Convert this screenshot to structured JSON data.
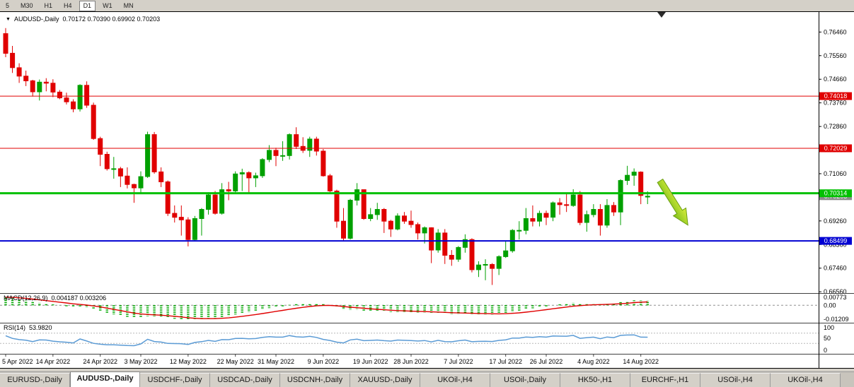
{
  "toolbar": {
    "timeframes": [
      "5",
      "M30",
      "H1",
      "H4",
      "D1",
      "W1",
      "MN"
    ],
    "active_timeframe": "D1"
  },
  "chart_data": {
    "type": "candlestick",
    "title_symbol": "AUDUSD-,Daily",
    "title_ohlc": "0.70172 0.70390 0.69902 0.70203",
    "y_range": [
      0.6651,
      0.7725
    ],
    "y_ticks": [
      "0.76460",
      "0.75560",
      "0.74660",
      "0.73760",
      "0.72860",
      "0.71960",
      "0.71060",
      "0.70160",
      "0.69260",
      "0.68360",
      "0.67460",
      "0.66560"
    ],
    "x_labels": [
      [
        "5 Apr 2022",
        0
      ],
      [
        "14 Apr 2022",
        7
      ],
      [
        "24 Apr 2022",
        14
      ],
      [
        "3 May 2022",
        20
      ],
      [
        "12 May 2022",
        27
      ],
      [
        "22 May 2022",
        34
      ],
      [
        "31 May 2022",
        40
      ],
      [
        "9 Jun 2022",
        47
      ],
      [
        "19 Jun 2022",
        54
      ],
      [
        "28 Jun 2022",
        60
      ],
      [
        "7 Jul 2022",
        67
      ],
      [
        "17 Jul 2022",
        74
      ],
      [
        "26 Jul 2022",
        80
      ],
      [
        "4 Aug 2022",
        87
      ],
      [
        "14 Aug 2022",
        94
      ]
    ],
    "up_color": "#00A000",
    "down_color": "#E00000",
    "hlines": [
      {
        "value": 0.74018,
        "label": "0.74018",
        "color": "#E00000",
        "width": 1
      },
      {
        "value": 0.72029,
        "label": "0.72029",
        "color": "#E00000",
        "width": 1
      },
      {
        "value": 0.70314,
        "label": "0.70314",
        "color": "#00C000",
        "width": 3
      },
      {
        "value": 0.68499,
        "label": "0.68499",
        "color": "#0000D2",
        "width": 2
      }
    ],
    "bid": {
      "value": 0.70203,
      "label": "0.70203",
      "color": "#8c8c8c"
    },
    "candles": [
      [
        0.764,
        0.7661,
        0.755,
        0.7565
      ],
      [
        0.7565,
        0.7593,
        0.749,
        0.751
      ],
      [
        0.751,
        0.7527,
        0.7452,
        0.7478
      ],
      [
        0.7478,
        0.7499,
        0.744,
        0.746
      ],
      [
        0.746,
        0.7464,
        0.74,
        0.7418
      ],
      [
        0.7418,
        0.7465,
        0.7385,
        0.7455
      ],
      [
        0.7455,
        0.747,
        0.742,
        0.7451
      ],
      [
        0.7451,
        0.7466,
        0.7398,
        0.7417
      ],
      [
        0.7417,
        0.7425,
        0.739,
        0.7395
      ],
      [
        0.7395,
        0.7415,
        0.737,
        0.738
      ],
      [
        0.738,
        0.739,
        0.734,
        0.7353
      ],
      [
        0.7353,
        0.7447,
        0.7343,
        0.7443
      ],
      [
        0.7443,
        0.7458,
        0.7357,
        0.7367
      ],
      [
        0.7367,
        0.7377,
        0.7235,
        0.724
      ],
      [
        0.724,
        0.7247,
        0.7135,
        0.718
      ],
      [
        0.718,
        0.719,
        0.7118,
        0.7125
      ],
      [
        0.7125,
        0.717,
        0.7087,
        0.7125
      ],
      [
        0.7125,
        0.7132,
        0.7055,
        0.7097
      ],
      [
        0.7097,
        0.713,
        0.705,
        0.7065
      ],
      [
        0.7065,
        0.7068,
        0.6995,
        0.7052
      ],
      [
        0.7052,
        0.7115,
        0.7029,
        0.7095
      ],
      [
        0.7095,
        0.7266,
        0.709,
        0.7255
      ],
      [
        0.7255,
        0.7265,
        0.7106,
        0.7113
      ],
      [
        0.7113,
        0.713,
        0.7055,
        0.7075
      ],
      [
        0.7075,
        0.708,
        0.6945,
        0.6955
      ],
      [
        0.6955,
        0.6985,
        0.692,
        0.694
      ],
      [
        0.694,
        0.6985,
        0.687,
        0.693
      ],
      [
        0.693,
        0.694,
        0.6829,
        0.6855
      ],
      [
        0.6855,
        0.6945,
        0.685,
        0.6935
      ],
      [
        0.6935,
        0.6975,
        0.687,
        0.697
      ],
      [
        0.697,
        0.7035,
        0.695,
        0.7025
      ],
      [
        0.7025,
        0.704,
        0.695,
        0.6955
      ],
      [
        0.6955,
        0.707,
        0.695,
        0.7045
      ],
      [
        0.7045,
        0.7075,
        0.7005,
        0.704
      ],
      [
        0.704,
        0.7115,
        0.7035,
        0.7105
      ],
      [
        0.7105,
        0.7125,
        0.704,
        0.711
      ],
      [
        0.711,
        0.7115,
        0.7035,
        0.709
      ],
      [
        0.709,
        0.711,
        0.7055,
        0.7098
      ],
      [
        0.7098,
        0.7165,
        0.709,
        0.716
      ],
      [
        0.716,
        0.7215,
        0.715,
        0.7195
      ],
      [
        0.7195,
        0.7205,
        0.7135,
        0.7175
      ],
      [
        0.7175,
        0.723,
        0.7155,
        0.7175
      ],
      [
        0.7175,
        0.726,
        0.716,
        0.7255
      ],
      [
        0.7255,
        0.7283,
        0.72,
        0.721
      ],
      [
        0.721,
        0.7245,
        0.7185,
        0.7195
      ],
      [
        0.7195,
        0.7247,
        0.717,
        0.7238
      ],
      [
        0.7238,
        0.7247,
        0.7175,
        0.7192
      ],
      [
        0.7192,
        0.72,
        0.7095,
        0.7098
      ],
      [
        0.7098,
        0.7105,
        0.7035,
        0.704
      ],
      [
        0.704,
        0.7045,
        0.69,
        0.6925
      ],
      [
        0.6925,
        0.6975,
        0.685,
        0.686
      ],
      [
        0.686,
        0.701,
        0.6855,
        0.7005
      ],
      [
        0.7005,
        0.707,
        0.6985,
        0.7045
      ],
      [
        0.7045,
        0.7045,
        0.693,
        0.6935
      ],
      [
        0.6935,
        0.6975,
        0.6925,
        0.695
      ],
      [
        0.695,
        0.6995,
        0.693,
        0.697
      ],
      [
        0.697,
        0.6975,
        0.688,
        0.6925
      ],
      [
        0.6925,
        0.693,
        0.6865,
        0.6895
      ],
      [
        0.6895,
        0.6955,
        0.689,
        0.6945
      ],
      [
        0.6945,
        0.696,
        0.6915,
        0.6925
      ],
      [
        0.6925,
        0.6965,
        0.69,
        0.6912
      ],
      [
        0.6912,
        0.692,
        0.6855,
        0.688
      ],
      [
        0.688,
        0.6905,
        0.684,
        0.69
      ],
      [
        0.69,
        0.6902,
        0.6765,
        0.6815
      ],
      [
        0.6815,
        0.6895,
        0.6805,
        0.688
      ],
      [
        0.688,
        0.6895,
        0.6762,
        0.6795
      ],
      [
        0.6795,
        0.6815,
        0.6755,
        0.678
      ],
      [
        0.678,
        0.683,
        0.677,
        0.6825
      ],
      [
        0.6825,
        0.6875,
        0.6805,
        0.6855
      ],
      [
        0.6855,
        0.686,
        0.673,
        0.674
      ],
      [
        0.674,
        0.6772,
        0.6712,
        0.6758
      ],
      [
        0.6758,
        0.678,
        0.67,
        0.676
      ],
      [
        0.676,
        0.6765,
        0.6682,
        0.6745
      ],
      [
        0.6745,
        0.6795,
        0.672,
        0.679
      ],
      [
        0.679,
        0.685,
        0.6785,
        0.6812
      ],
      [
        0.6812,
        0.6895,
        0.6805,
        0.689
      ],
      [
        0.689,
        0.6925,
        0.6855,
        0.689
      ],
      [
        0.689,
        0.6975,
        0.6875,
        0.6935
      ],
      [
        0.6935,
        0.6985,
        0.6905,
        0.6925
      ],
      [
        0.6925,
        0.6965,
        0.6905,
        0.6955
      ],
      [
        0.6955,
        0.6965,
        0.691,
        0.694
      ],
      [
        0.694,
        0.7,
        0.6925,
        0.6995
      ],
      [
        0.6995,
        0.7013,
        0.695,
        0.6988
      ],
      [
        0.6988,
        0.7032,
        0.696,
        0.6985
      ],
      [
        0.6985,
        0.7047,
        0.698,
        0.7025
      ],
      [
        0.7025,
        0.704,
        0.691,
        0.692
      ],
      [
        0.692,
        0.6965,
        0.6885,
        0.695
      ],
      [
        0.695,
        0.699,
        0.694,
        0.697
      ],
      [
        0.697,
        0.699,
        0.687,
        0.691
      ],
      [
        0.691,
        0.7009,
        0.69,
        0.6985
      ],
      [
        0.6985,
        0.6998,
        0.6945,
        0.696
      ],
      [
        0.696,
        0.7085,
        0.691,
        0.708
      ],
      [
        0.708,
        0.7136,
        0.7063,
        0.71
      ],
      [
        0.71,
        0.7126,
        0.706,
        0.7112
      ],
      [
        0.7112,
        0.7115,
        0.699,
        0.7023
      ],
      [
        0.70172,
        0.7039,
        0.69902,
        0.70203
      ]
    ],
    "indicators": {
      "macd": {
        "label": "MACD(12,26,9)",
        "values": "0.004187 0.003206",
        "y_ticks": [
          "0.00773",
          "0.00",
          "-0.01209"
        ],
        "y_range": [
          -0.01209,
          0.00773
        ],
        "histogram_color": "#00A800",
        "signal_color": "#E00000"
      },
      "rsi": {
        "label": "RSI(14)",
        "value": "53.9820",
        "y_ticks": [
          "100",
          "50",
          "0"
        ],
        "levels": [
          70,
          30
        ],
        "line_color": "#5B9BD5"
      }
    },
    "arrow": {
      "color_top": "#D9EE3C",
      "color_bottom": "#7FBF1C",
      "outline": "#6B9E12"
    }
  },
  "tabs": {
    "items": [
      "EURUSD-,Daily",
      "AUDUSD-,Daily",
      "USDCHF-,Daily",
      "USDCAD-,Daily",
      "USDCNH-,Daily",
      "XAUUSD-,Daily",
      "UKOil-,H4",
      "USOil-,Daily",
      "HK50-,H1",
      "EURCHF-,H1",
      "USOil-,H4",
      "UKOil-,H4"
    ],
    "active": "AUDUSD-,Daily"
  }
}
